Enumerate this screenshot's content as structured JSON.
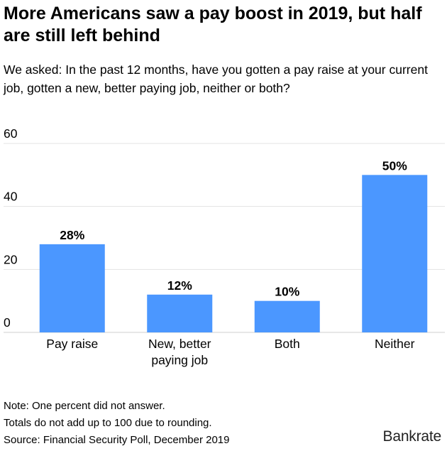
{
  "title": "More Americans saw a pay boost in 2019, but half are still left behind",
  "subtitle": "We asked: In the past 12 months, have you gotten a pay raise at your current job, gotten a new, better paying job, neither or both?",
  "chart_data": {
    "type": "bar",
    "categories": [
      [
        "Pay raise"
      ],
      [
        "New, better",
        "paying job"
      ],
      [
        "Both"
      ],
      [
        "Neither"
      ]
    ],
    "values": [
      28,
      12,
      10,
      50
    ],
    "value_labels": [
      "28%",
      "12%",
      "10%",
      "50%"
    ],
    "ylim": [
      0,
      60
    ],
    "yticks": [
      0,
      20,
      40,
      60
    ],
    "ytick_labels": [
      "0",
      "20",
      "40",
      "60"
    ],
    "grid": true,
    "legend": "none",
    "bar_color": "#4b97ff",
    "grid_color": "#e3e3e3"
  },
  "notes": [
    "Note: One percent did not answer.",
    "Totals do not add up to 100 due to rounding.",
    "Source: Financial Security Poll, December 2019"
  ],
  "brand": "Bankrate"
}
